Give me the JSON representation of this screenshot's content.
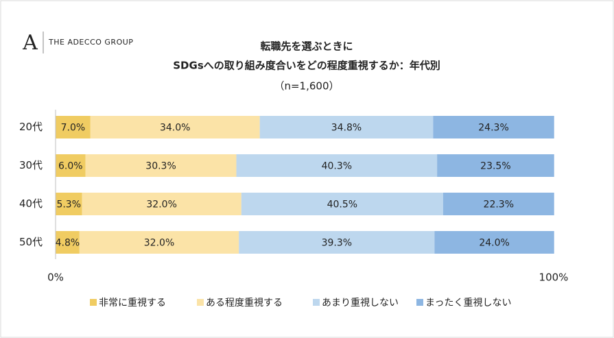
{
  "chart_data": {
    "type": "stacked-bar-horizontal",
    "logo": {
      "mark": "A",
      "text": "THE ADECCO GROUP"
    },
    "title": [
      "転職先を選ぶときに",
      "SDGsへの取り組み度合いをどの程度重視するか：年代別"
    ],
    "subtitle": "（n=1,600）",
    "categories": [
      "20代",
      "30代",
      "40代",
      "50代"
    ],
    "series": [
      {
        "name": "非常に重視する",
        "color": "#f0cc62",
        "values": [
          7.0,
          6.0,
          5.3,
          4.8
        ],
        "value_labels": [
          "7.0%",
          "6.0%",
          "5.3%",
          "4.8%"
        ]
      },
      {
        "name": "ある程度重視する",
        "color": "#fbe3a7",
        "values": [
          34.0,
          30.3,
          32.0,
          32.0
        ],
        "value_labels": [
          "34.0%",
          "30.3%",
          "32.0%",
          "32.0%"
        ]
      },
      {
        "name": "あまり重視しない",
        "color": "#bdd7ee",
        "values": [
          34.8,
          40.3,
          40.5,
          39.3
        ],
        "value_labels": [
          "34.8%",
          "40.3%",
          "40.5%",
          "39.3%"
        ]
      },
      {
        "name": "まったく重視しない",
        "color": "#8db6e2",
        "values": [
          24.3,
          23.5,
          22.3,
          24.0
        ],
        "value_labels": [
          "24.3%",
          "23.5%",
          "22.3%",
          "24.0%"
        ]
      }
    ],
    "xlim": [
      0,
      100
    ],
    "xticks": [
      {
        "value": 0,
        "label": "0%"
      },
      {
        "value": 100,
        "label": "100%"
      }
    ]
  }
}
